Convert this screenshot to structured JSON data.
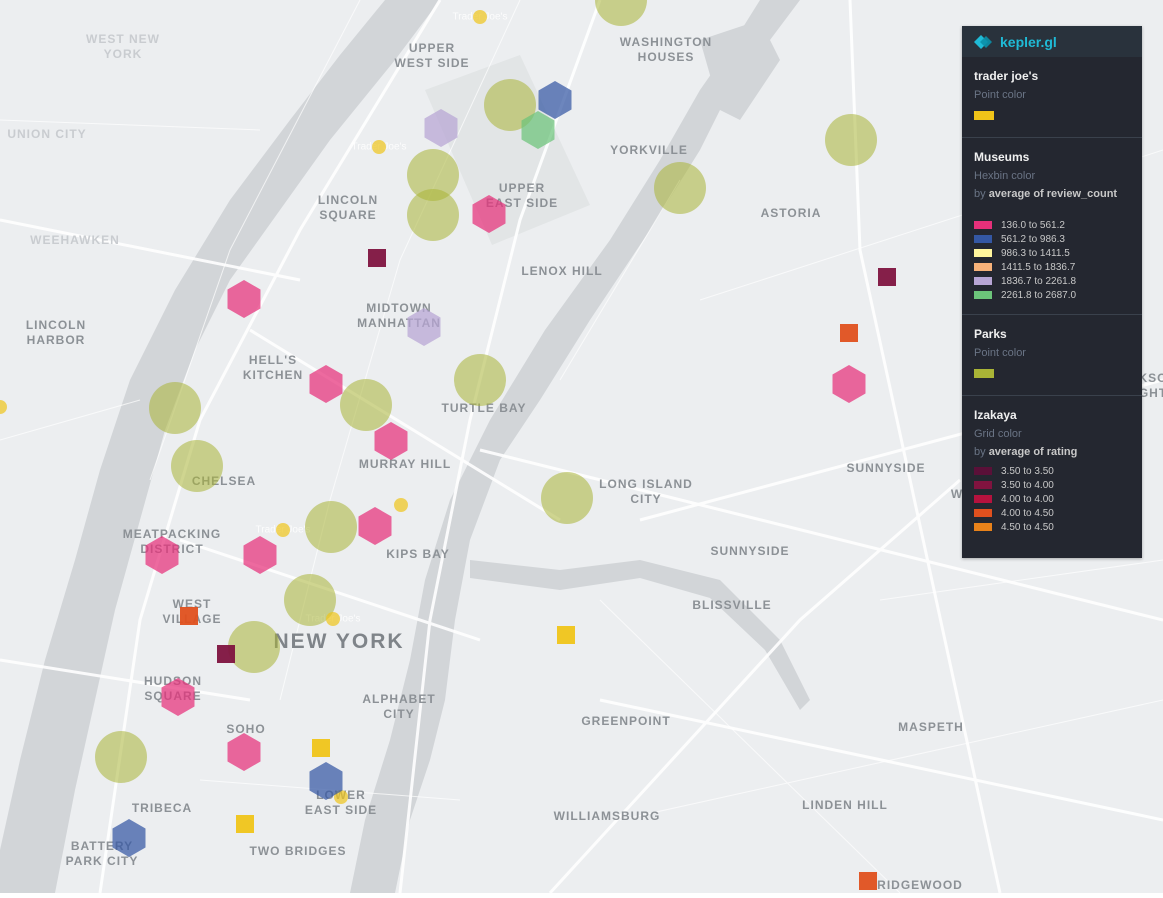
{
  "app": {
    "brand": "kepler.gl"
  },
  "legend": [
    {
      "name": "trader joe's",
      "property": "Point color",
      "single_color": "#f0c419"
    },
    {
      "name": "Museums",
      "property": "Hexbin color",
      "by_prefix": "by",
      "by_field": "average of review_count",
      "items": [
        {
          "label": "136.0 to 561.2",
          "color": "#e6307a"
        },
        {
          "label": "561.2 to 986.3",
          "color": "#3457a3"
        },
        {
          "label": "986.3 to 1411.5",
          "color": "#fff59d"
        },
        {
          "label": "1411.5 to 1836.7",
          "color": "#f7b27a"
        },
        {
          "label": "1836.7 to 2261.8",
          "color": "#b7a5d4"
        },
        {
          "label": "2261.8 to 2687.0",
          "color": "#6cc47a"
        }
      ]
    },
    {
      "name": "Parks",
      "property": "Point color",
      "single_color": "#a9b436"
    },
    {
      "name": "Izakaya",
      "property": "Grid color",
      "by_prefix": "by",
      "by_field": "average of rating",
      "items": [
        {
          "label": "3.50 to 3.50",
          "color": "#5a1038"
        },
        {
          "label": "3.50 to 4.00",
          "color": "#80133f"
        },
        {
          "label": "4.00 to 4.00",
          "color": "#b5123e"
        },
        {
          "label": "4.00 to 4.50",
          "color": "#e0501e"
        },
        {
          "label": "4.50 to 4.50",
          "color": "#e8821a"
        }
      ]
    }
  ],
  "map": {
    "labels": {
      "west_new_york": "WEST NEW\nYORK",
      "union_city": "UNION CITY",
      "weehawken": "WEEHAWKEN",
      "lincoln_harbor": "LINCOLN\nHARBOR",
      "upper_west_side": "UPPER\nWEST SIDE",
      "washington_houses": "WASHINGTON\nHOUSES",
      "yorkville": "YORKVILLE",
      "lincoln_square": "LINCOLN\nSQUARE",
      "upper_east_side": "UPPER\nEAST SIDE",
      "astoria": "ASTORIA",
      "lenox_hill": "LENOX HILL",
      "midtown_manhattan": "MIDTOWN\nMANHATTAN",
      "hells_kitchen": "HELL'S\nKITCHEN",
      "turtle_bay": "TURTLE BAY",
      "murray_hill": "MURRAY HILL",
      "chelsea": "CHELSEA",
      "sunnyside_1": "SUNNYSIDE",
      "long_island_city": "LONG ISLAND\nCITY",
      "meatpacking_district": "MEATPACKING\nDISTRICT",
      "kips_bay": "KIPS BAY",
      "sunnyside_2": "SUNNYSIDE",
      "west_village": "WEST\nVILLAGE",
      "blissville": "BLISSVILLE",
      "new_york": "NEW YORK",
      "hudson_square": "HUDSON\nSQUARE",
      "alphabet_city": "ALPHABET\nCITY",
      "greenpoint": "GREENPOINT",
      "maspeth": "MASPETH",
      "soho": "SOHO",
      "lower_east_side": "LOWER\nEAST SIDE",
      "tribeca": "TRIBECA",
      "linden_hill": "LINDEN HILL",
      "williamsburg": "WILLIAMSBURG",
      "battery_park_city": "BATTERY\nPARK CITY",
      "two_bridges": "TWO BRIDGES",
      "ridgewood": "RIDGEWOOD",
      "edge_ks": "KSO\nGHT",
      "edge_w": "W"
    },
    "poi_labels": {
      "tj1": "Trader Joe's",
      "tj2": "Trader Joe's",
      "tj3": "Trader Joe's",
      "tj4": "Trader Joe's"
    }
  }
}
